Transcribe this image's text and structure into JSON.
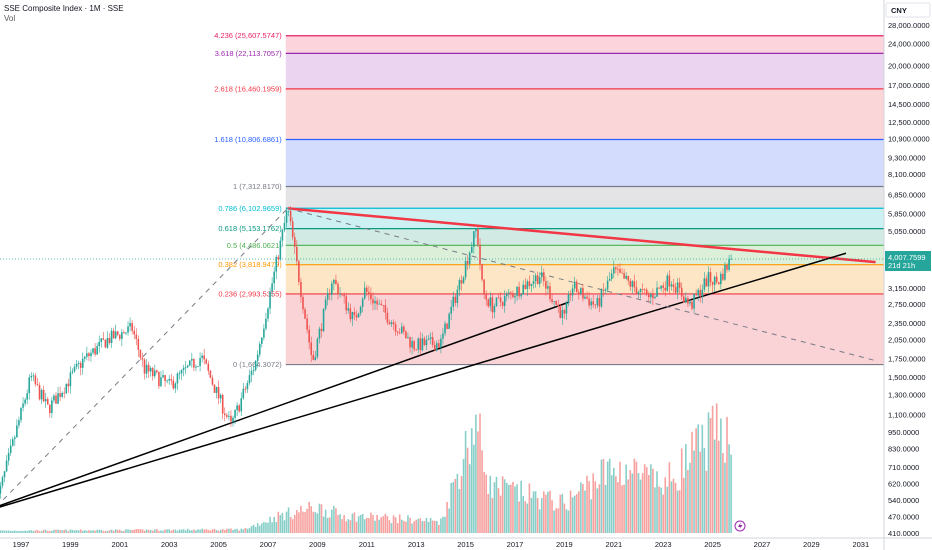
{
  "header": {
    "title": "SSE Composite Index · 1M · SSE",
    "sub": "Vol"
  },
  "currency": "CNY",
  "price_label": {
    "value": "4,007.7599",
    "countdown": "21d 21h",
    "price": 4007.76
  },
  "chart_data": {
    "type": "candlestick",
    "title": "SSE Composite Index · 1M · SSE",
    "scale": "log",
    "ylim": [
      410,
      28000
    ],
    "xlim": [
      1996.1,
      2031.6
    ],
    "y_ticks": [
      28000,
      24000,
      20000,
      17000,
      14500,
      12500,
      10900,
      9300,
      8100,
      6850,
      5850,
      5050,
      4250,
      3150,
      2750,
      2350,
      2050,
      1750,
      1500,
      1300,
      1100,
      950,
      830,
      710,
      620,
      540,
      470,
      410
    ],
    "y_tick_labels": [
      "28,000.0000",
      "24,000.0000",
      "20,000.0000",
      "17,000.0000",
      "14,500.0000",
      "12,500.0000",
      "10,900.0000",
      "9,300.0000",
      "8,100.0000",
      "6,850.0000",
      "5,850.0000",
      "5,050.0000",
      "4,250.0000",
      "3,150.0000",
      "2,750.0000",
      "2,350.0000",
      "2,050.0000",
      "1,750.0000",
      "1,500.0000",
      "1,300.0000",
      "1,100.0000",
      "950.0000",
      "830.0000",
      "710.0000",
      "620.0000",
      "540.0000",
      "470.0000",
      "410.0000"
    ],
    "x_ticks": [
      1997,
      1999,
      2001,
      2003,
      2005,
      2007,
      2009,
      2011,
      2013,
      2015,
      2017,
      2019,
      2021,
      2023,
      2025,
      2027,
      2029,
      2031
    ],
    "x_tick_labels": [
      "1997",
      "1999",
      "2001",
      "2003",
      "2005",
      "2007",
      "2009",
      "2011",
      "2013",
      "2015",
      "2017",
      "2019",
      "2021",
      "2023",
      "2025",
      "2027",
      "2029",
      "2031"
    ],
    "price_path": [
      [
        1996.0,
        520
      ],
      [
        1997.4,
        1500
      ],
      [
        1998.1,
        1150
      ],
      [
        1999.5,
        1720
      ],
      [
        2000.5,
        2050
      ],
      [
        2001.5,
        2245
      ],
      [
        2002.0,
        1600
      ],
      [
        2003.0,
        1400
      ],
      [
        2004.3,
        1780
      ],
      [
        2005.5,
        1000
      ],
      [
        2006.5,
        1700
      ],
      [
        2007.8,
        6100
      ],
      [
        2008.8,
        1700
      ],
      [
        2009.6,
        3400
      ],
      [
        2010.5,
        2400
      ],
      [
        2010.9,
        3100
      ],
      [
        2012.9,
        1950
      ],
      [
        2014.0,
        2000
      ],
      [
        2015.45,
        5180
      ],
      [
        2015.7,
        3000
      ],
      [
        2016.1,
        2700
      ],
      [
        2018.0,
        3500
      ],
      [
        2019.0,
        2440
      ],
      [
        2019.3,
        3200
      ],
      [
        2020.3,
        2700
      ],
      [
        2021.0,
        3600
      ],
      [
        2022.4,
        2900
      ],
      [
        2023.3,
        3400
      ],
      [
        2024.1,
        2700
      ],
      [
        2024.8,
        3400
      ],
      [
        2025.2,
        3300
      ],
      [
        2025.75,
        4007.76
      ]
    ],
    "volume_path": [
      [
        1996.0,
        0.02
      ],
      [
        2006.0,
        0.03
      ],
      [
        2007.5,
        0.15
      ],
      [
        2009.0,
        0.22
      ],
      [
        2010.0,
        0.15
      ],
      [
        2014.0,
        0.1
      ],
      [
        2015.4,
        0.95
      ],
      [
        2016.0,
        0.4
      ],
      [
        2019.0,
        0.25
      ],
      [
        2020.5,
        0.5
      ],
      [
        2021.5,
        0.55
      ],
      [
        2023.0,
        0.4
      ],
      [
        2024.8,
        0.8
      ],
      [
        2025.7,
        0.9
      ]
    ],
    "fib_levels": [
      {
        "label": "4.236 (25,607.5747)",
        "value": 25607.5747,
        "color": "#e91e63",
        "fill": "#fbd4dc"
      },
      {
        "label": "3.618 (22,113.7057)",
        "value": 22113.7057,
        "color": "#9c27b0",
        "fill": "#ead4ef"
      },
      {
        "label": "2.618 (16,460.1959)",
        "value": 16460.1959,
        "color": "#f23645",
        "fill": "#fbd6d8"
      },
      {
        "label": "1.618 (10,806.6861)",
        "value": 10806.6861,
        "color": "#2962ff",
        "fill": "#d3dcfc"
      },
      {
        "label": "1 (7,312.8170)",
        "value": 7312.817,
        "color": "#787b86",
        "fill": "#e4e4e6"
      },
      {
        "label": "0.786 (6,102.9659)",
        "value": 6102.9659,
        "color": "#00bcd4",
        "fill": "#cdf0f3"
      },
      {
        "label": "0.618 (5,153.1762)",
        "value": 5153.1762,
        "color": "#089981",
        "fill": "#d1eae4"
      },
      {
        "label": "0.5 (4,486.0621)",
        "value": 4486.0621,
        "color": "#4caf50",
        "fill": "#dcefd9"
      },
      {
        "label": "0.382 (3,818.9479)",
        "value": 3818.9479,
        "color": "#ff9800",
        "fill": "#fde6c5"
      },
      {
        "label": "0.236 (2,993.5355)",
        "value": 2993.5355,
        "color": "#f23645",
        "fill": "#fad3d6"
      },
      {
        "label": "0 (1,664.3072)",
        "value": 1664.3072,
        "color": "#787b86",
        "fill": null
      }
    ],
    "fib_start": 2007.8,
    "trendlines": [
      {
        "name": "red-resistance",
        "from": [
          2007.8,
          6100
        ],
        "to": [
          2031.6,
          3900
        ],
        "color": "#f23645"
      },
      {
        "name": "support-1",
        "from": [
          1996.0,
          510
        ],
        "to": [
          2019.2,
          2800
        ],
        "color": "#000000"
      },
      {
        "name": "support-2",
        "from": [
          1996.0,
          505
        ],
        "to": [
          2030.4,
          4200
        ],
        "color": "#000000"
      },
      {
        "name": "dashed-up",
        "from": [
          1996.0,
          510
        ],
        "to": [
          2007.8,
          6100
        ],
        "color": "#787b86",
        "dashed": true
      },
      {
        "name": "dashed-down",
        "from": [
          2007.8,
          6100
        ],
        "to": [
          2031.6,
          1720
        ],
        "color": "#787b86",
        "dashed": true
      }
    ],
    "colors": {
      "up": "#26a69a",
      "down": "#ef5350"
    }
  }
}
